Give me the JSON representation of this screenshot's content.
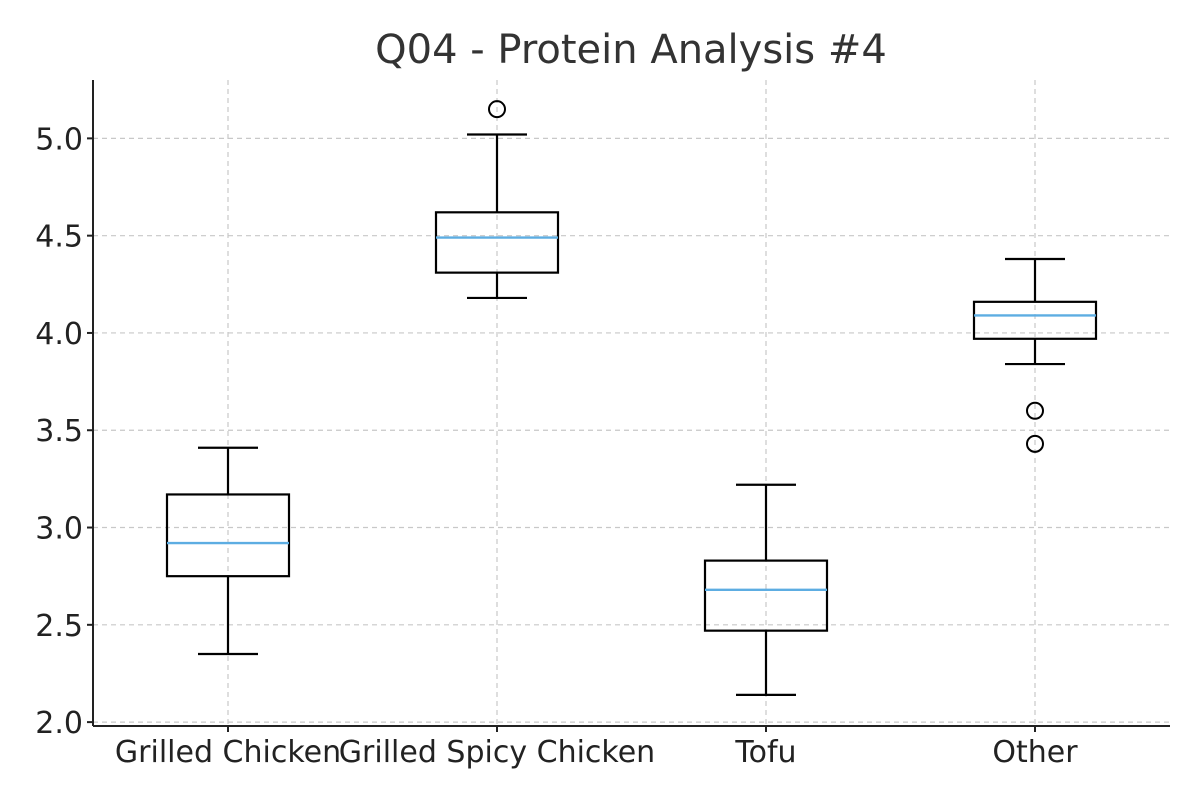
{
  "chart_data": {
    "type": "box",
    "title": "Q04 - Protein Analysis #4",
    "xlabel": "",
    "ylabel": "",
    "categories": [
      "Grilled Chicken",
      "Grilled Spicy Chicken",
      "Tofu",
      "Other"
    ],
    "ylim": [
      1.98,
      5.3
    ],
    "yticks": [
      2.0,
      2.5,
      3.0,
      3.5,
      4.0,
      4.5,
      5.0
    ],
    "ytick_labels": [
      "2.0",
      "2.5",
      "3.0",
      "3.5",
      "4.0",
      "4.5",
      "5.0"
    ],
    "grid": true,
    "median_color": "#5dade2",
    "box_color": "#000000",
    "boxes": [
      {
        "category": "Grilled Chicken",
        "whisker_low": 2.35,
        "q1": 2.75,
        "median": 2.92,
        "q3": 3.17,
        "whisker_high": 3.41,
        "outliers": []
      },
      {
        "category": "Grilled Spicy Chicken",
        "whisker_low": 4.18,
        "q1": 4.31,
        "median": 4.49,
        "q3": 4.62,
        "whisker_high": 5.02,
        "outliers": [
          5.15
        ]
      },
      {
        "category": "Tofu",
        "whisker_low": 2.14,
        "q1": 2.47,
        "median": 2.68,
        "q3": 2.83,
        "whisker_high": 3.22,
        "outliers": []
      },
      {
        "category": "Other",
        "whisker_low": 3.84,
        "q1": 3.97,
        "median": 4.09,
        "q3": 4.16,
        "whisker_high": 4.38,
        "outliers": [
          3.6,
          3.43
        ]
      }
    ]
  }
}
